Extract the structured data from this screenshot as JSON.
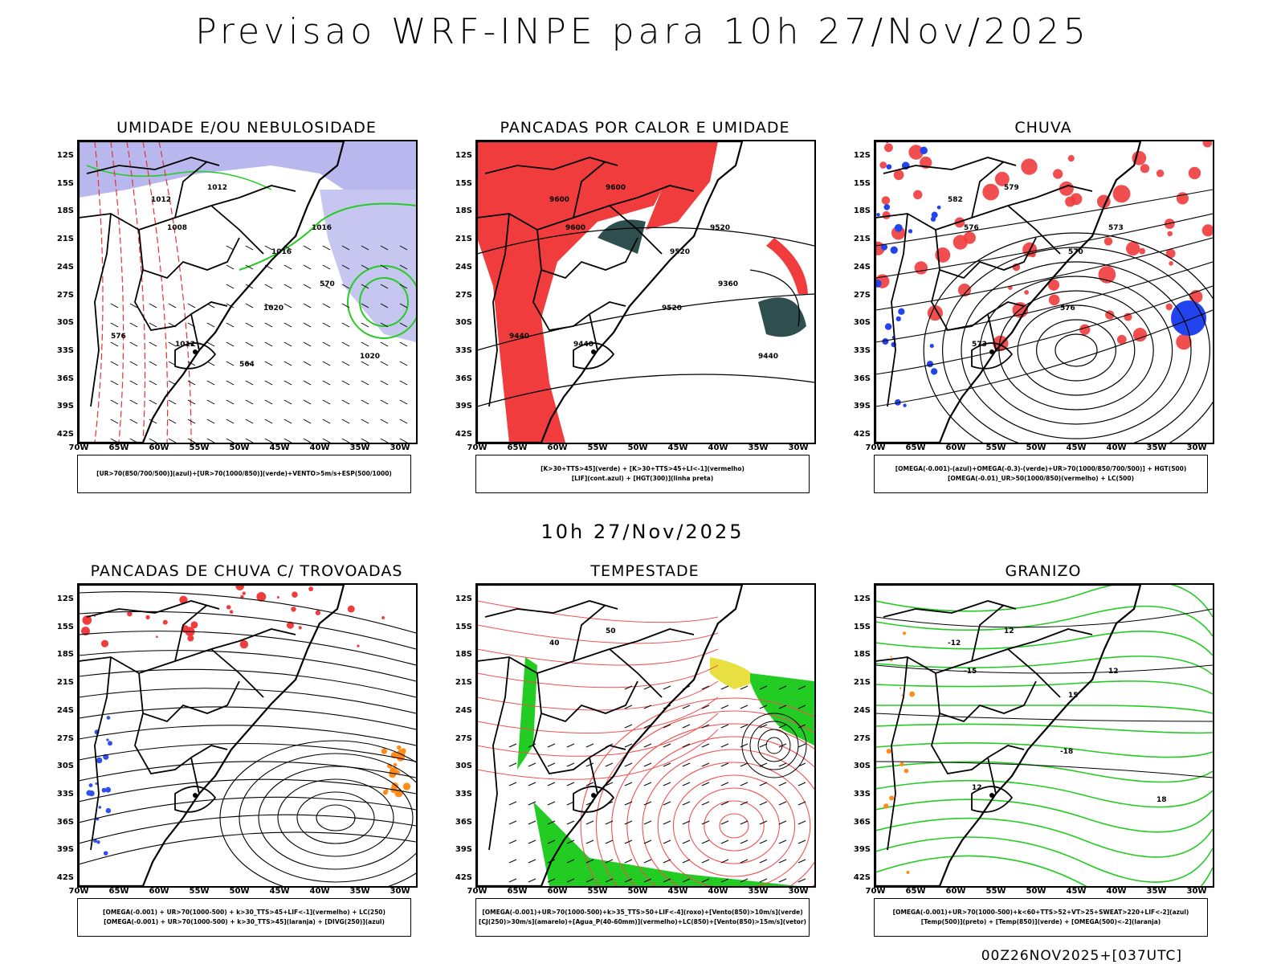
{
  "page": {
    "title": "Previsao WRF-INPE  para 10h 27/Nov/2025",
    "subtitle": "10h 27/Nov/2025",
    "footer": "00Z26NOV2025+[037UTC]"
  },
  "axes": {
    "lat_labels": [
      "12S",
      "15S",
      "18S",
      "21S",
      "24S",
      "27S",
      "30S",
      "33S",
      "36S",
      "39S",
      "42S"
    ],
    "lon_labels": [
      "70W",
      "65W",
      "60W",
      "55W",
      "50W",
      "45W",
      "40W",
      "35W",
      "30W"
    ]
  },
  "panels": [
    {
      "title": "UMIDADE E/OU NEBULOSIDADE",
      "legend": [
        "[UR>70(850/700/500)](azul)+[UR>70(1000/850)](verde)+VENTO>5m/s+ESP(500/1000)"
      ],
      "contour_labels": [
        "1012",
        "1012",
        "1008",
        "1016",
        "1016",
        "1020",
        "1012",
        "1020",
        "576",
        "570",
        "564"
      ],
      "colors": {
        "fill": "#b8b8ee",
        "line1": "#22cc22",
        "line2": "#e83030"
      }
    },
    {
      "title": "PANCADAS POR CALOR E UMIDADE",
      "legend": [
        "[K>30+TTS>45](verde) + [K>30+TTS>45+LI<-1](vermelho)",
        "[LIF](cont.azul) + [HGT(300)](linha preta)"
      ],
      "contour_labels": [
        "9600",
        "9600",
        "9600",
        "9520",
        "9520",
        "9520",
        "9440",
        "9440",
        "9440",
        "9360"
      ],
      "colors": {
        "fill": "#f03c3c",
        "fill2": "#2f4f4f",
        "line1": "#3050ee"
      }
    },
    {
      "title": "CHUVA",
      "legend": [
        "[OMEGA(-0.001)-(azul)+OMEGA(-0.3)-(verde)+UR>70(1000/850/700/500)] + HGT(500)",
        "[OMEGA(-0.01)_UR>50(1000/850)(vermelho) + LC(500)"
      ],
      "contour_labels": [
        "582",
        "579",
        "576",
        "573",
        "570",
        "576",
        "573"
      ],
      "colors": {
        "fill": "#f03c3c",
        "fill2": "#2244ee",
        "line1": "#22cc22"
      }
    },
    {
      "title": "PANCADAS DE CHUVA C/ TROVOADAS",
      "legend": [
        "[OMEGA(-0.001) + UR>70(1000-500) + k>30_TTS>45+LIF<-1](vermelho) + LC(250)",
        "[OMEGA(-0.001) + UR>70(1000-500) + k>30_TTS>45](laranja) + [DIVG(250)](azul)"
      ],
      "contour_labels": [],
      "colors": {
        "fill": "#f03c3c",
        "fill2": "#ff8c1a",
        "line1": "#3050ee"
      }
    },
    {
      "title": "TEMPESTADE",
      "legend": [
        "[OMEGA(-0.001)+UR>70(1000-500)+k>35_TTS>50+LIF<-4](roxo)+[Vento(850)>10m/s](verde)",
        "[CJ(250)>30m/s](amarelo)+[Agua_P(40-60mm)](vermelho)+LC(850)+[Vento(850)>15m/s](vetor)"
      ],
      "contour_labels": [
        "40",
        "50"
      ],
      "colors": {
        "fill": "#22cc22",
        "fill2": "#e8e040",
        "line1": "#f05050"
      }
    },
    {
      "title": "GRANIZO",
      "legend": [
        "[OMEGA(-0.001)+UR>70(1000-500)+k<60+TTS>52+VT>25+SWEAT>220+LIF<-2](azul)",
        "[Temp(500)](preto) + [Temp(850)](verde) + [OMEGA(500)<-2](laranja)"
      ],
      "contour_labels": [
        "-12",
        "12",
        "-15",
        "12",
        "15",
        "-18",
        "12",
        "18"
      ],
      "colors": {
        "fill": "#22cc22",
        "fill2": "#ff8c1a",
        "line1": "#22cc22"
      }
    }
  ]
}
